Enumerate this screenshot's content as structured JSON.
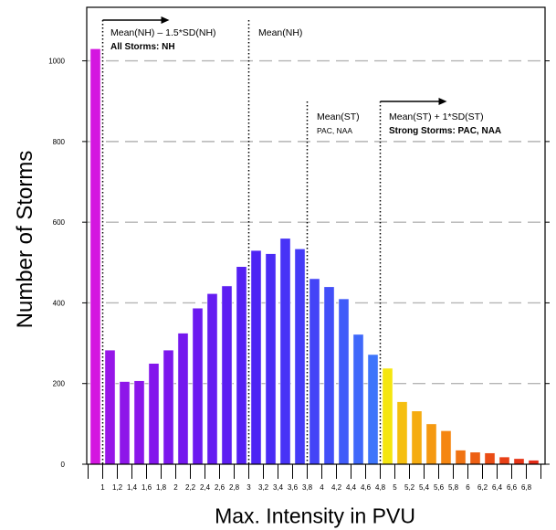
{
  "chart_data": {
    "type": "bar",
    "xlabel": "Max. Intensity in PVU",
    "ylabel": "Number of Storms",
    "ylim": [
      0,
      1150
    ],
    "y_ticks": [
      0,
      200,
      400,
      600,
      800,
      1000
    ],
    "grid": "dashed horizontal",
    "x_tick_labels": [
      "1",
      "1,2",
      "1,4",
      "1,6",
      "1,8",
      "2",
      "2,2",
      "2,4",
      "2,6",
      "2,8",
      "3",
      "3,2",
      "3,4",
      "3,6",
      "3,8",
      "4",
      "4,2",
      "4,4",
      "4,6",
      "4,8",
      "5",
      "5,2",
      "5,4",
      "5,6",
      "5,8",
      "6",
      "6,2",
      "6,4",
      "6,6",
      "6,8"
    ],
    "values": [
      1030,
      283,
      205,
      207,
      250,
      283,
      325,
      387,
      423,
      442,
      490,
      530,
      522,
      560,
      534,
      460,
      440,
      410,
      322,
      272,
      238,
      155,
      132,
      100,
      83,
      35,
      30,
      28,
      18,
      14,
      10
    ],
    "colors": [
      "#d416e0",
      "#9716e8",
      "#8e16e9",
      "#8a16ea",
      "#8316ec",
      "#7c17ed",
      "#7418ee",
      "#6c1af0",
      "#641cf1",
      "#5c1ef2",
      "#5420f3",
      "#4d24f4",
      "#4a2bf5",
      "#4733f6",
      "#453bf7",
      "#4344f7",
      "#424ff8",
      "#405bf9",
      "#3f68fa",
      "#3e75fb",
      "#f5e60f",
      "#f5bf10",
      "#f5ac10",
      "#f59911",
      "#f58612",
      "#f07313",
      "#ed6014",
      "#ea4d15",
      "#e84016",
      "#e63517",
      "#e42b18"
    ],
    "annotations": [
      {
        "line": "Mean(NH) – 1.5*SD(NH)",
        "bold": "All Storms: NH"
      },
      {
        "line": "Mean(NH)"
      },
      {
        "line": "Mean(ST)",
        "sub": "PAC, NAA"
      },
      {
        "line": "Mean(ST) + 1*SD(ST)",
        "bold": "Strong Storms: PAC, NAA"
      }
    ]
  }
}
